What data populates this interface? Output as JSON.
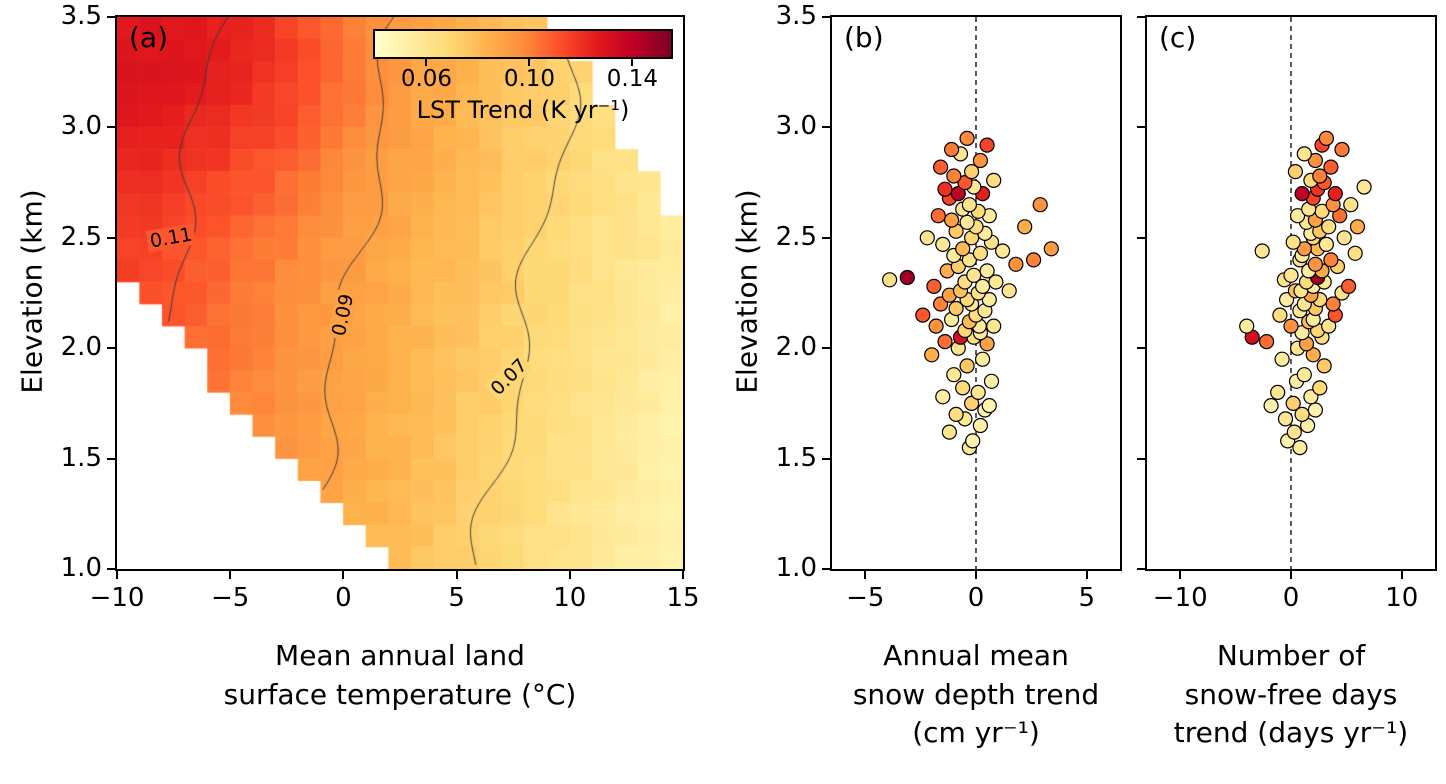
{
  "chart_data": [
    {
      "id": "panel_a",
      "type": "heatmap",
      "title": "(a)",
      "xlabel": "Mean annual land\nsurface temperature (°C)",
      "ylabel": "Elevation (km)",
      "xlim": [
        -10,
        15
      ],
      "ylim": [
        1.0,
        3.5
      ],
      "xticks": [
        -10,
        -5,
        0,
        5,
        10,
        15
      ],
      "xtick_labels": [
        "−10",
        "−5",
        "0",
        "5",
        "10",
        "15"
      ],
      "yticks": [
        1.0,
        1.5,
        2.0,
        2.5,
        3.0,
        3.5
      ],
      "ytick_labels": [
        "1.0",
        "1.5",
        "2.0",
        "2.5",
        "3.0",
        "3.5"
      ],
      "grid_nx": 25,
      "grid_ny": 25,
      "value_model": {
        "base": 0.0905,
        "ref_elevation": 2.2,
        "slope_per_degC": -0.0025,
        "slope_per_km": 0.0045,
        "bump": {
          "amp": 0.017,
          "T0": -5,
          "E0": 3.3,
          "sigma_T": 6,
          "sigma_E": 0.6
        },
        "noise_amp": 0.002
      },
      "mask": {
        "lower_edge_E_at_xmin": 2.35,
        "lower_edge_slope": -0.112,
        "upper_edge_T_start": 9,
        "upper_edge_slope": -0.16
      },
      "contour_color": "#3a3a3a",
      "contours": [
        {
          "level": 0.11,
          "label": "0.11",
          "label_x": -7.6,
          "label_y": 2.5,
          "label_rot": -10
        },
        {
          "level": 0.09,
          "label": "0.09",
          "label_x": 0.0,
          "label_y": 2.15,
          "label_rot": -78
        },
        {
          "level": 0.07,
          "label": "0.07",
          "label_x": 7.3,
          "label_y": 1.87,
          "label_rot": -45
        }
      ],
      "colorbar": {
        "label": "LST Trend (K yr⁻¹)",
        "ticks": [
          0.06,
          0.1,
          0.14
        ],
        "tick_labels": [
          "0.06",
          "0.10",
          "0.14"
        ],
        "vmin": 0.04,
        "vmax": 0.155,
        "colormap": "YlOrRd",
        "stops": [
          "#ffffcc",
          "#ffeda0",
          "#fed976",
          "#feb24c",
          "#fd8d3c",
          "#fc4e2a",
          "#e31a1c",
          "#bd0026",
          "#800026"
        ]
      }
    },
    {
      "id": "panel_b",
      "type": "scatter",
      "title": "(b)",
      "xlabel": "Annual mean\nsnow depth trend\n(cm yr⁻¹)",
      "ylabel": "Elevation (km)",
      "xlim": [
        -6.5,
        6.5
      ],
      "ylim": [
        1.0,
        3.5
      ],
      "xticks": [
        -5,
        0,
        5
      ],
      "xtick_labels": [
        "−5",
        "0",
        "5"
      ],
      "yticks": [
        1.0,
        1.5,
        2.0,
        2.5,
        3.0,
        3.5
      ],
      "ytick_labels": [
        "1.0",
        "1.5",
        "2.0",
        "2.5",
        "3.0",
        "3.5"
      ],
      "zero_line_x": 0,
      "data_source": "stations",
      "x_column": "snow_depth_trend_cm_yr",
      "y_column": "elevation_km",
      "color_column": "lst_trend_K_yr"
    },
    {
      "id": "panel_c",
      "type": "scatter",
      "title": "(c)",
      "xlabel": "Number of\nsnow-free days\ntrend (days yr⁻¹)",
      "xlim": [
        -13,
        13
      ],
      "ylim": [
        1.0,
        3.5
      ],
      "xticks": [
        -10,
        0,
        10
      ],
      "xtick_labels": [
        "−10",
        "0",
        "10"
      ],
      "yticks": [
        1.0,
        1.5,
        2.0,
        2.5,
        3.0,
        3.5
      ],
      "ytick_labels": [],
      "zero_line_x": 0,
      "data_source": "stations",
      "x_column": "snowfree_days_trend_days_yr",
      "y_column": "elevation_km",
      "color_column": "lst_trend_K_yr"
    }
  ],
  "stations": {
    "columns": [
      "elevation_km",
      "snow_depth_trend_cm_yr",
      "snowfree_days_trend_days_yr",
      "lst_trend_K_yr"
    ],
    "rows": [
      [
        1.55,
        -0.3,
        0.8,
        0.055
      ],
      [
        1.58,
        -0.15,
        -0.3,
        0.05
      ],
      [
        1.62,
        -1.2,
        0.3,
        0.06
      ],
      [
        1.65,
        0.2,
        1.5,
        0.052
      ],
      [
        1.68,
        -0.5,
        -0.5,
        0.058
      ],
      [
        1.7,
        -0.9,
        1.0,
        0.065
      ],
      [
        1.72,
        0.4,
        2.2,
        0.05
      ],
      [
        1.74,
        0.6,
        -1.8,
        0.05
      ],
      [
        1.75,
        -0.2,
        0.2,
        0.072
      ],
      [
        1.78,
        -1.5,
        1.8,
        0.055
      ],
      [
        1.8,
        0.1,
        -1.2,
        0.06
      ],
      [
        1.82,
        -0.6,
        2.6,
        0.068
      ],
      [
        1.85,
        0.7,
        0.5,
        0.052
      ],
      [
        1.88,
        -1.0,
        1.2,
        0.058
      ],
      [
        1.92,
        -0.4,
        3.0,
        0.075
      ],
      [
        1.95,
        0.3,
        -0.8,
        0.055
      ],
      [
        1.97,
        -2.0,
        2.0,
        0.085
      ],
      [
        2.0,
        -0.8,
        0.6,
        0.06
      ],
      [
        2.02,
        0.5,
        1.4,
        0.09
      ],
      [
        2.03,
        -1.4,
        -2.2,
        0.105
      ],
      [
        2.05,
        -0.1,
        2.8,
        0.065
      ],
      [
        2.05,
        -0.7,
        -3.5,
        0.132
      ],
      [
        2.07,
        0.2,
        1.0,
        0.055
      ],
      [
        2.08,
        -0.5,
        2.4,
        0.07
      ],
      [
        2.1,
        -1.8,
        0.0,
        0.095
      ],
      [
        2.1,
        0.8,
        3.4,
        0.06
      ],
      [
        2.1,
        0.15,
        -4.0,
        0.055
      ],
      [
        2.12,
        -0.3,
        1.6,
        0.08
      ],
      [
        2.13,
        -1.1,
        2.0,
        0.055
      ],
      [
        2.15,
        0.0,
        -1.0,
        0.065
      ],
      [
        2.15,
        -2.4,
        4.0,
        0.11
      ],
      [
        2.17,
        0.4,
        0.8,
        0.058
      ],
      [
        2.18,
        -0.9,
        2.2,
        0.075
      ],
      [
        2.2,
        -0.2,
        1.2,
        0.06
      ],
      [
        2.2,
        -1.6,
        3.8,
        0.1
      ],
      [
        2.22,
        0.6,
        -0.4,
        0.055
      ],
      [
        2.22,
        -0.4,
        2.6,
        0.068
      ],
      [
        2.24,
        -1.2,
        1.8,
        0.09
      ],
      [
        2.25,
        0.1,
        4.6,
        0.062
      ],
      [
        2.26,
        -0.7,
        0.4,
        0.078
      ],
      [
        2.26,
        1.5,
        0.9,
        0.06
      ],
      [
        2.28,
        0.3,
        2.0,
        0.055
      ],
      [
        2.28,
        -1.9,
        5.2,
        0.108
      ],
      [
        2.3,
        -0.5,
        1.4,
        0.065
      ],
      [
        2.3,
        0.9,
        3.0,
        0.058
      ],
      [
        2.31,
        -3.9,
        -0.6,
        0.062
      ],
      [
        2.32,
        -3.1,
        2.4,
        0.148
      ],
      [
        2.33,
        -0.1,
        0.0,
        0.06
      ],
      [
        2.35,
        -1.3,
        2.8,
        0.085
      ],
      [
        2.35,
        0.5,
        1.6,
        0.055
      ],
      [
        2.37,
        -0.8,
        4.2,
        0.072
      ],
      [
        2.38,
        1.8,
        2.2,
        0.095
      ],
      [
        2.4,
        -0.3,
        0.8,
        0.06
      ],
      [
        2.4,
        2.6,
        3.6,
        0.1
      ],
      [
        2.42,
        -1.0,
        1.0,
        0.055
      ],
      [
        2.43,
        0.2,
        5.8,
        0.065
      ],
      [
        2.44,
        1.2,
        -2.6,
        0.058
      ],
      [
        2.45,
        -0.6,
        2.4,
        0.08
      ],
      [
        2.45,
        3.4,
        1.2,
        0.092
      ],
      [
        2.47,
        -1.5,
        3.2,
        0.058
      ],
      [
        2.48,
        0.7,
        0.2,
        0.062
      ],
      [
        2.5,
        -0.2,
        2.0,
        0.07
      ],
      [
        2.5,
        -2.2,
        4.8,
        0.06
      ],
      [
        2.52,
        0.4,
        1.8,
        0.055
      ],
      [
        2.53,
        -0.9,
        2.6,
        0.075
      ],
      [
        2.55,
        0.0,
        3.4,
        0.065
      ],
      [
        2.55,
        2.2,
        6.0,
        0.085
      ],
      [
        2.57,
        -0.4,
        1.4,
        0.058
      ],
      [
        2.58,
        -1.1,
        2.2,
        0.09
      ],
      [
        2.6,
        0.6,
        0.6,
        0.055
      ],
      [
        2.6,
        -1.7,
        4.4,
        0.105
      ],
      [
        2.62,
        0.1,
        2.8,
        0.068
      ],
      [
        2.63,
        -0.6,
        1.6,
        0.06
      ],
      [
        2.65,
        2.9,
        3.8,
        0.095
      ],
      [
        2.65,
        -0.3,
        5.4,
        0.062
      ],
      [
        2.68,
        -1.2,
        2.0,
        0.115
      ],
      [
        2.7,
        0.3,
        4.0,
        0.125
      ],
      [
        2.7,
        -0.8,
        1.0,
        0.14
      ],
      [
        2.72,
        -1.4,
        2.4,
        0.12
      ],
      [
        2.73,
        -0.1,
        6.6,
        0.058
      ],
      [
        2.75,
        -0.5,
        3.0,
        0.11
      ],
      [
        2.76,
        0.8,
        1.8,
        0.065
      ],
      [
        2.78,
        -1.0,
        2.6,
        0.1
      ],
      [
        2.8,
        -0.2,
        0.4,
        0.072
      ],
      [
        2.82,
        -1.6,
        3.6,
        0.108
      ],
      [
        2.85,
        0.2,
        2.2,
        0.095
      ],
      [
        2.88,
        -0.7,
        1.2,
        0.06
      ],
      [
        2.9,
        -1.1,
        4.6,
        0.102
      ],
      [
        2.92,
        0.5,
        2.8,
        0.115
      ],
      [
        2.95,
        -0.4,
        3.2,
        0.098
      ]
    ]
  }
}
